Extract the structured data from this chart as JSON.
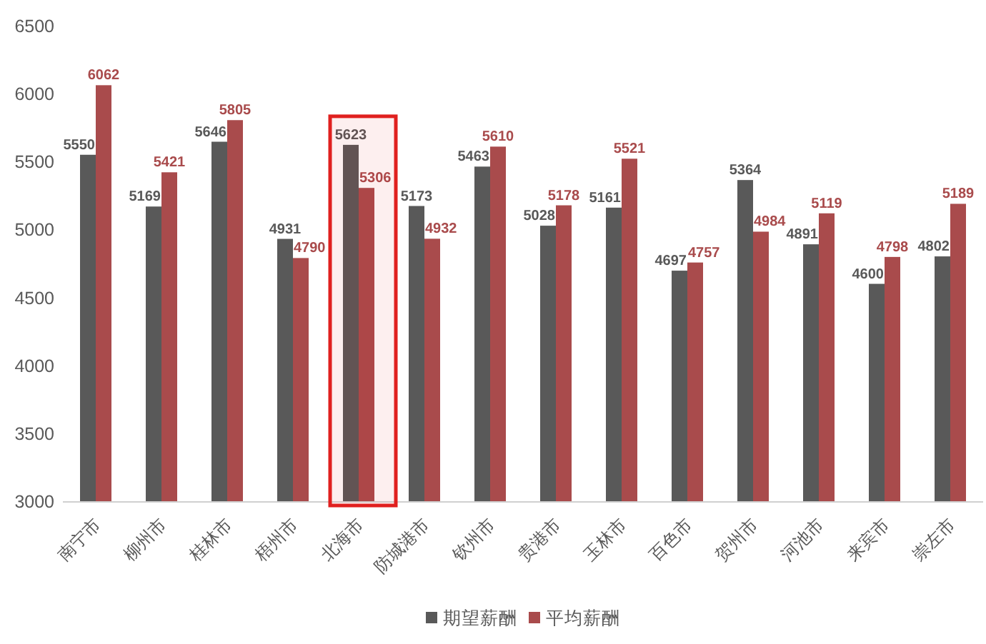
{
  "chart_data": {
    "type": "bar",
    "categories": [
      "南宁市",
      "柳州市",
      "桂林市",
      "梧州市",
      "北海市",
      "防城港市",
      "钦州市",
      "贵港市",
      "玉林市",
      "百色市",
      "贺州市",
      "河池市",
      "来宾市",
      "崇左市"
    ],
    "series": [
      {
        "name": "期望薪酬",
        "color": "#595959",
        "values": [
          5550,
          5169,
          5646,
          4931,
          5623,
          5173,
          5463,
          5028,
          5161,
          4697,
          5364,
          4891,
          4600,
          4802
        ]
      },
      {
        "name": "平均薪酬",
        "color": "#a94b4c",
        "values": [
          6062,
          5421,
          5805,
          4790,
          5306,
          4932,
          5610,
          5178,
          5521,
          4757,
          4984,
          5119,
          4798,
          5189
        ]
      }
    ],
    "ylim": [
      3000,
      6500
    ],
    "yticks": [
      3000,
      3500,
      4000,
      4500,
      5000,
      5500,
      6000,
      6500
    ],
    "data_labels": true,
    "legend": "bottom",
    "bands": [
      {
        "axis": "x",
        "from": "北海市",
        "to": "北海市",
        "color": "#e0201f"
      }
    ]
  }
}
